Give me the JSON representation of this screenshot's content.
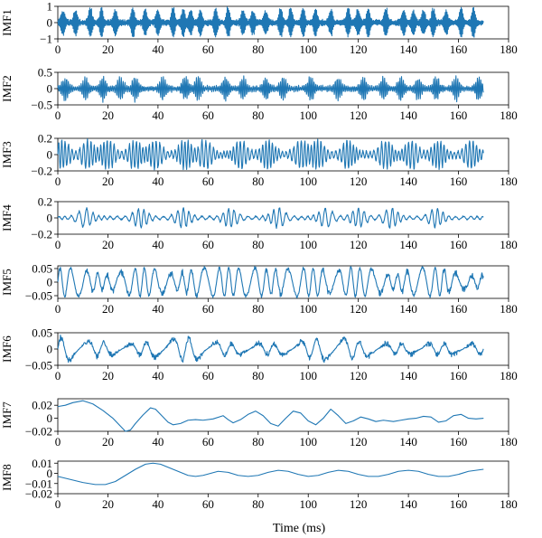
{
  "figure": {
    "xlabel": "Time (ms)"
  },
  "chart_data": {
    "type": "line",
    "x_range": [
      0,
      170
    ],
    "xlim": [
      0,
      180
    ],
    "x_ticks": [
      0,
      20,
      40,
      60,
      80,
      100,
      120,
      140,
      160,
      180
    ],
    "xlabel": "Time (ms)",
    "line_color": "#1f77b4",
    "panels": [
      {
        "name": "IMF1",
        "ylim": [
          -1,
          1
        ],
        "y_ticks": [
          {
            "v": 1,
            "label": "1"
          },
          {
            "v": 0,
            "label": "0"
          },
          {
            "v": -1,
            "label": "−1"
          }
        ],
        "pattern": {
          "kind": "burst",
          "period": 0.35,
          "burst_centers": [
            2,
            7,
            13,
            17.5,
            23,
            30,
            35,
            40,
            46,
            50,
            53,
            57,
            63,
            68,
            74,
            78,
            83,
            89,
            93,
            98,
            103,
            109,
            116,
            120,
            124,
            131,
            138,
            142,
            146,
            150,
            155,
            161,
            166
          ],
          "burst_width": 0.9,
          "burst_amp": 0.95,
          "noise_amp": 0.15
        }
      },
      {
        "name": "IMF2",
        "ylim": [
          -0.5,
          0.5
        ],
        "y_ticks": [
          {
            "v": 0.5,
            "label": "0.5"
          },
          {
            "v": 0,
            "label": "0"
          },
          {
            "v": -0.5,
            "label": "−0.5"
          }
        ],
        "pattern": {
          "kind": "burst",
          "period": 0.7,
          "burst_centers": [
            3,
            11,
            18,
            25,
            31,
            42,
            51,
            56,
            67,
            74,
            83,
            90,
            101,
            112,
            122,
            130,
            137,
            144,
            151,
            159,
            168
          ],
          "burst_width": 1.5,
          "burst_amp": 0.33,
          "noise_amp": 0.08
        }
      },
      {
        "name": "IMF3",
        "ylim": [
          -0.2,
          0.2
        ],
        "y_ticks": [
          {
            "v": 0.2,
            "label": "0.2"
          },
          {
            "v": 0,
            "label": "0"
          },
          {
            "v": -0.2,
            "label": "−0.2"
          }
        ],
        "pattern": {
          "kind": "burst",
          "period": 1.4,
          "burst_centers": [
            2,
            12,
            20,
            31,
            39,
            51,
            59,
            73,
            84,
            97,
            104,
            116,
            131,
            141,
            152,
            165
          ],
          "burst_width": 3.0,
          "burst_amp": 0.17,
          "noise_amp": 0.04
        }
      },
      {
        "name": "IMF4",
        "ylim": [
          -0.2,
          0.2
        ],
        "y_ticks": [
          {
            "v": 0.2,
            "label": "0.2"
          },
          {
            "v": 0,
            "label": "0"
          },
          {
            "v": -0.2,
            "label": "−0.2"
          }
        ],
        "pattern": {
          "kind": "burst",
          "period": 2.6,
          "burst_centers": [
            11,
            33,
            50,
            69,
            88,
            107,
            120,
            133,
            151
          ],
          "burst_width": 3.5,
          "burst_amp": 0.11,
          "noise_amp": 0.02
        }
      },
      {
        "name": "IMF5",
        "ylim": [
          -0.06,
          0.06
        ],
        "y_ticks": [
          {
            "v": 0.05,
            "label": "0.05"
          },
          {
            "v": 0,
            "label": "0"
          },
          {
            "v": -0.05,
            "label": "−0.05"
          }
        ],
        "pattern": {
          "kind": "burst",
          "period": 4.8,
          "burst_centers": [
            5,
            34,
            60,
            77,
            98,
            120,
            148
          ],
          "burst_width": 9,
          "burst_amp": 0.045,
          "noise_amp": 0.025
        }
      },
      {
        "name": "IMF6",
        "ylim": [
          -0.05,
          0.05
        ],
        "y_ticks": [
          {
            "v": 0.05,
            "label": "0.05"
          },
          {
            "v": 0,
            "label": "0"
          },
          {
            "v": -0.05,
            "label": "−0.05"
          }
        ],
        "pattern": {
          "kind": "burst",
          "period": 8.5,
          "burst_centers": [
            2,
            50,
            110
          ],
          "burst_width": 12,
          "burst_amp": 0.02,
          "noise_amp": 0.018
        }
      },
      {
        "name": "IMF7",
        "ylim": [
          -0.02,
          0.03
        ],
        "y_ticks": [
          {
            "v": 0.02,
            "label": "0.02"
          },
          {
            "v": 0,
            "label": "0"
          },
          {
            "v": -0.02,
            "label": "−0.02"
          }
        ],
        "points": [
          [
            0,
            0.018
          ],
          [
            3,
            0.02
          ],
          [
            6,
            0.024
          ],
          [
            10,
            0.027
          ],
          [
            14,
            0.022
          ],
          [
            18,
            0.012
          ],
          [
            22,
            0.0
          ],
          [
            25,
            -0.012
          ],
          [
            27,
            -0.02
          ],
          [
            29,
            -0.018
          ],
          [
            31,
            -0.008
          ],
          [
            34,
            0.005
          ],
          [
            37,
            0.016
          ],
          [
            39,
            0.014
          ],
          [
            41,
            0.006
          ],
          [
            44,
            -0.006
          ],
          [
            46,
            -0.01
          ],
          [
            49,
            -0.008
          ],
          [
            52,
            -0.003
          ],
          [
            55,
            -0.002
          ],
          [
            58,
            -0.003
          ],
          [
            62,
            -0.001
          ],
          [
            66,
            0.004
          ],
          [
            68,
            -0.002
          ],
          [
            70,
            -0.007
          ],
          [
            73,
            -0.002
          ],
          [
            76,
            0.006
          ],
          [
            79,
            0.011
          ],
          [
            82,
            0.004
          ],
          [
            85,
            -0.008
          ],
          [
            88,
            -0.012
          ],
          [
            91,
            0.0
          ],
          [
            94,
            0.011
          ],
          [
            97,
            0.008
          ],
          [
            100,
            -0.004
          ],
          [
            103,
            -0.01
          ],
          [
            106,
            0.0
          ],
          [
            109,
            0.014
          ],
          [
            112,
            0.004
          ],
          [
            115,
            -0.008
          ],
          [
            118,
            -0.004
          ],
          [
            121,
            0.002
          ],
          [
            124,
            -0.001
          ],
          [
            127,
            -0.005
          ],
          [
            130,
            -0.003
          ],
          [
            134,
            -0.005
          ],
          [
            137,
            -0.003
          ],
          [
            140,
            -0.001
          ],
          [
            143,
            0.0
          ],
          [
            146,
            0.003
          ],
          [
            149,
            0.002
          ],
          [
            152,
            -0.006
          ],
          [
            155,
            -0.004
          ],
          [
            158,
            0.004
          ],
          [
            161,
            0.006
          ],
          [
            164,
            0.0
          ],
          [
            167,
            -0.001
          ],
          [
            170,
            0.0
          ]
        ]
      },
      {
        "name": "IMF8",
        "ylim": [
          -0.02,
          0.012
        ],
        "y_ticks": [
          {
            "v": 0.01,
            "label": "0.01"
          },
          {
            "v": 0,
            "label": "0"
          },
          {
            "v": -0.01,
            "label": "−0.01"
          },
          {
            "v": -0.02,
            "label": "−0.02"
          }
        ],
        "points": [
          [
            0,
            -0.003
          ],
          [
            5,
            -0.006
          ],
          [
            10,
            -0.009
          ],
          [
            15,
            -0.011
          ],
          [
            19,
            -0.011
          ],
          [
            23,
            -0.008
          ],
          [
            27,
            -0.002
          ],
          [
            31,
            0.004
          ],
          [
            35,
            0.009
          ],
          [
            38,
            0.01
          ],
          [
            41,
            0.009
          ],
          [
            45,
            0.005
          ],
          [
            49,
            0.001
          ],
          [
            52,
            -0.002
          ],
          [
            55,
            -0.003
          ],
          [
            58,
            -0.002
          ],
          [
            61,
            0.0
          ],
          [
            64,
            0.002
          ],
          [
            68,
            0.001
          ],
          [
            72,
            -0.002
          ],
          [
            76,
            -0.003
          ],
          [
            80,
            -0.002
          ],
          [
            84,
            0.001
          ],
          [
            88,
            0.003
          ],
          [
            92,
            0.002
          ],
          [
            96,
            -0.001
          ],
          [
            100,
            -0.003
          ],
          [
            104,
            -0.002
          ],
          [
            108,
            0.001
          ],
          [
            112,
            0.003
          ],
          [
            116,
            0.002
          ],
          [
            120,
            -0.001
          ],
          [
            124,
            -0.003
          ],
          [
            128,
            -0.003
          ],
          [
            132,
            -0.001
          ],
          [
            136,
            0.002
          ],
          [
            140,
            0.003
          ],
          [
            144,
            0.002
          ],
          [
            148,
            -0.001
          ],
          [
            152,
            -0.003
          ],
          [
            156,
            -0.003
          ],
          [
            160,
            -0.001
          ],
          [
            164,
            0.002
          ],
          [
            170,
            0.004
          ]
        ]
      }
    ]
  }
}
